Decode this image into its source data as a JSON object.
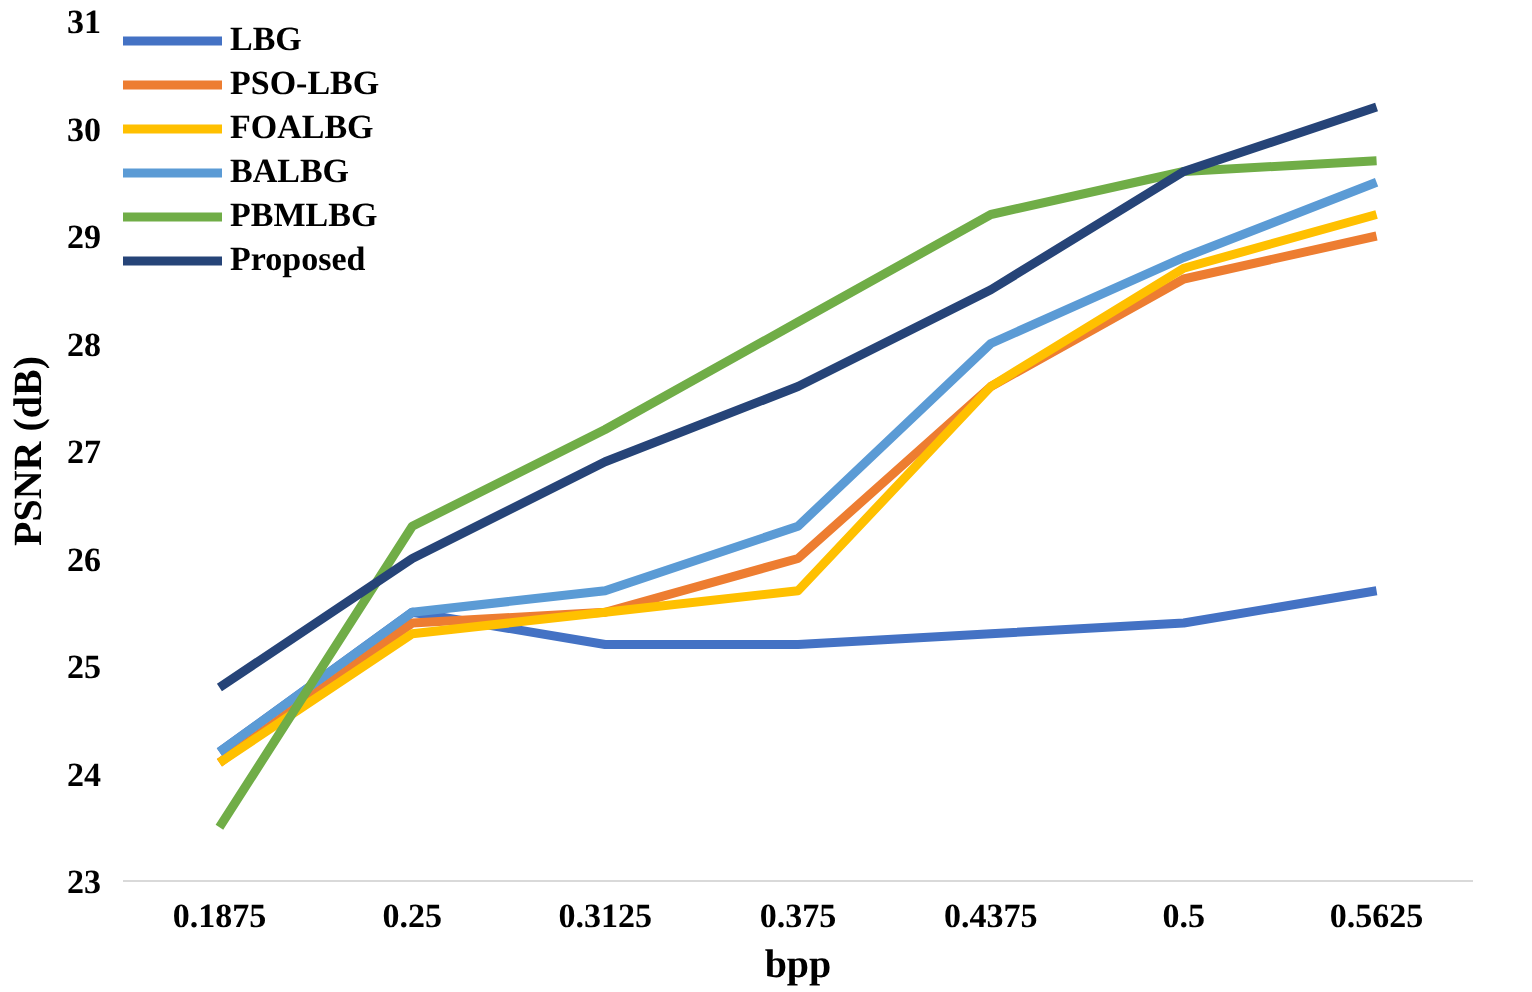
{
  "chart_data": {
    "type": "line",
    "xlabel": "bpp",
    "ylabel": "PSNR (dB)",
    "categories": [
      "0.1875",
      "0.25",
      "0.3125",
      "0.375",
      "0.4375",
      "0.5",
      "0.5625"
    ],
    "ylim": [
      23,
      31
    ],
    "yticks": [
      23,
      24,
      25,
      26,
      27,
      28,
      29,
      30,
      31
    ],
    "grid": false,
    "legend": "top left",
    "marker": "none",
    "line_style": "solid",
    "series": [
      {
        "name": "LBG",
        "color": "#4472c4",
        "values": [
          24.2,
          25.5,
          25.2,
          25.2,
          25.3,
          25.4,
          25.7
        ]
      },
      {
        "name": "PSO-LBG",
        "color": "#ed7d31",
        "values": [
          24.1,
          25.4,
          25.5,
          26.0,
          27.6,
          28.6,
          29.0
        ]
      },
      {
        "name": "FOALBG",
        "color": "#ffc000",
        "values": [
          24.1,
          25.3,
          25.5,
          25.7,
          27.6,
          28.7,
          29.2
        ]
      },
      {
        "name": "BALBG",
        "color": "#5b9bd5",
        "values": [
          24.2,
          25.5,
          25.7,
          26.3,
          28.0,
          28.8,
          29.5
        ]
      },
      {
        "name": "PBMLBG",
        "color": "#70ad47",
        "values": [
          23.5,
          26.3,
          27.2,
          28.2,
          29.2,
          29.6,
          29.7
        ]
      },
      {
        "name": "Proposed",
        "color": "#264478",
        "values": [
          24.8,
          26.0,
          26.9,
          27.6,
          28.5,
          29.6,
          30.2
        ]
      }
    ]
  }
}
